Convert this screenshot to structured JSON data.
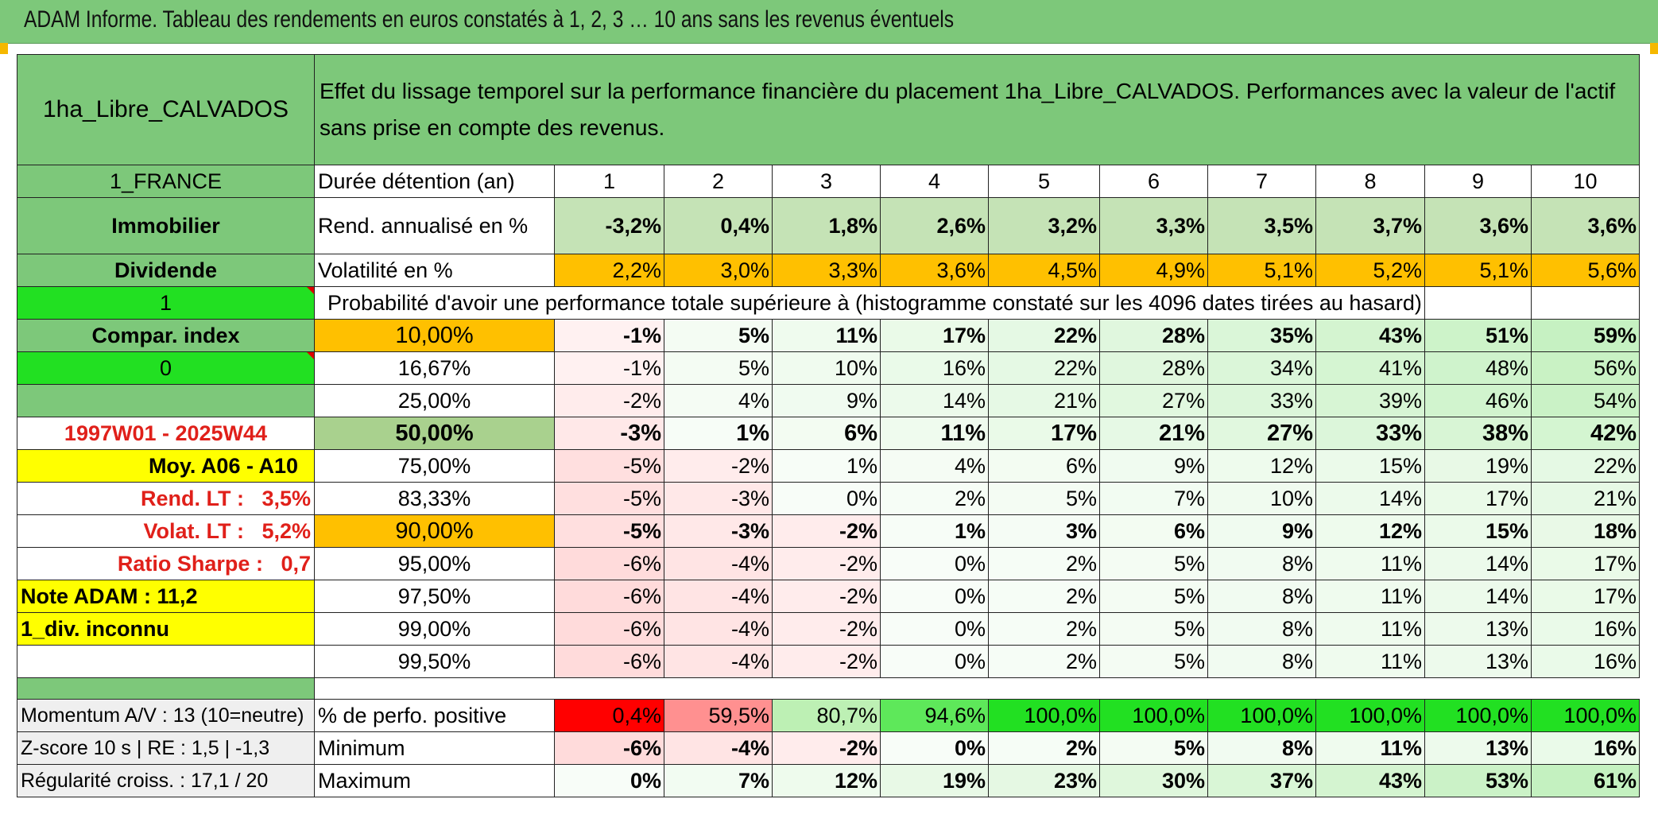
{
  "title": "ADAM Informe. Tableau des rendements en euros constatés à 1, 2, 3 … 10 ans sans les revenus éventuels",
  "header": {
    "name": "1ha_Libre_CALVADOS",
    "description": "Effet du lissage temporel sur la performance financière du placement 1ha_Libre_CALVADOS. Performances avec la valeur de l'actif sans prise en compte des revenus."
  },
  "side": {
    "country": "1_FRANCE",
    "asset_class": "Immobilier",
    "income_type": "Dividende",
    "value_1": "1",
    "compar_index": "Compar. index",
    "value_0": "0",
    "period": "1997W01 - 2025W44",
    "moy": "Moy. A06 - A10",
    "rend_lt_label": "Rend. LT :",
    "rend_lt_value": "3,5%",
    "volat_lt_label": "Volat. LT :",
    "volat_lt_value": "5,2%",
    "sharpe_label": "Ratio Sharpe :",
    "sharpe_value": "0,7",
    "note": "Note ADAM : 11,2",
    "div": "1_div. inconnu"
  },
  "labels": {
    "duree": "Durée détention (an)",
    "rend": "Rend. annualisé en %",
    "volat": "Volatilité en %",
    "proba": "Probabilité d'avoir une performance totale supérieure à (histogramme constaté sur les 4096 dates tirées au hasard)",
    "perfo_pos": "% de perfo. positive",
    "minimum": "Minimum",
    "maximum": "Maximum"
  },
  "years": [
    "1",
    "2",
    "3",
    "4",
    "5",
    "6",
    "7",
    "8",
    "9",
    "10"
  ],
  "rend": [
    "-3,2%",
    "0,4%",
    "1,8%",
    "2,6%",
    "3,2%",
    "3,3%",
    "3,5%",
    "3,7%",
    "3,6%",
    "3,6%"
  ],
  "volat": [
    "2,2%",
    "3,0%",
    "3,3%",
    "3,6%",
    "4,5%",
    "4,9%",
    "5,1%",
    "5,2%",
    "5,1%",
    "5,6%"
  ],
  "percentiles": [
    {
      "p": "10,00%",
      "v": [
        "-1%",
        "5%",
        "11%",
        "17%",
        "22%",
        "28%",
        "35%",
        "43%",
        "51%",
        "59%"
      ]
    },
    {
      "p": "16,67%",
      "v": [
        "-1%",
        "5%",
        "10%",
        "16%",
        "22%",
        "28%",
        "34%",
        "41%",
        "48%",
        "56%"
      ]
    },
    {
      "p": "25,00%",
      "v": [
        "-2%",
        "4%",
        "9%",
        "14%",
        "21%",
        "27%",
        "33%",
        "39%",
        "46%",
        "54%"
      ]
    },
    {
      "p": "50,00%",
      "v": [
        "-3%",
        "1%",
        "6%",
        "11%",
        "17%",
        "21%",
        "27%",
        "33%",
        "38%",
        "42%"
      ]
    },
    {
      "p": "75,00%",
      "v": [
        "-5%",
        "-2%",
        "1%",
        "4%",
        "6%",
        "9%",
        "12%",
        "15%",
        "19%",
        "22%"
      ]
    },
    {
      "p": "83,33%",
      "v": [
        "-5%",
        "-3%",
        "0%",
        "2%",
        "5%",
        "7%",
        "10%",
        "14%",
        "17%",
        "21%"
      ]
    },
    {
      "p": "90,00%",
      "v": [
        "-5%",
        "-3%",
        "-2%",
        "1%",
        "3%",
        "6%",
        "9%",
        "12%",
        "15%",
        "18%"
      ]
    },
    {
      "p": "95,00%",
      "v": [
        "-6%",
        "-4%",
        "-2%",
        "0%",
        "2%",
        "5%",
        "8%",
        "11%",
        "14%",
        "17%"
      ]
    },
    {
      "p": "97,50%",
      "v": [
        "-6%",
        "-4%",
        "-2%",
        "0%",
        "2%",
        "5%",
        "8%",
        "11%",
        "14%",
        "17%"
      ]
    },
    {
      "p": "99,00%",
      "v": [
        "-6%",
        "-4%",
        "-2%",
        "0%",
        "2%",
        "5%",
        "8%",
        "11%",
        "13%",
        "16%"
      ]
    },
    {
      "p": "99,50%",
      "v": [
        "-6%",
        "-4%",
        "-2%",
        "0%",
        "2%",
        "5%",
        "8%",
        "11%",
        "13%",
        "16%"
      ]
    }
  ],
  "bottom": {
    "momentum": "Momentum A/V : 13 (10=neutre)",
    "zscore": "Z-score 10 s | RE : 1,5 | -1,3",
    "regularite": "Régularité croiss. : 17,1 / 20"
  },
  "perfo_pos": [
    "0,4%",
    "59,5%",
    "80,7%",
    "94,6%",
    "100,0%",
    "100,0%",
    "100,0%",
    "100,0%",
    "100,0%",
    "100,0%"
  ],
  "minimum": [
    "-6%",
    "-4%",
    "-2%",
    "0%",
    "2%",
    "5%",
    "8%",
    "11%",
    "13%",
    "16%"
  ],
  "maximum": [
    "0%",
    "7%",
    "12%",
    "19%",
    "23%",
    "30%",
    "37%",
    "43%",
    "53%",
    "61%"
  ],
  "colors": {
    "header_green": "#7dc87a",
    "light_green": "#c5e3b6",
    "bright_green": "#22e022",
    "yellow": "#ffff00",
    "orange": "#ffc000",
    "red_text": "#e0201a",
    "perfo_red": "#ff0000",
    "perfo_pink": "#ff9090"
  }
}
